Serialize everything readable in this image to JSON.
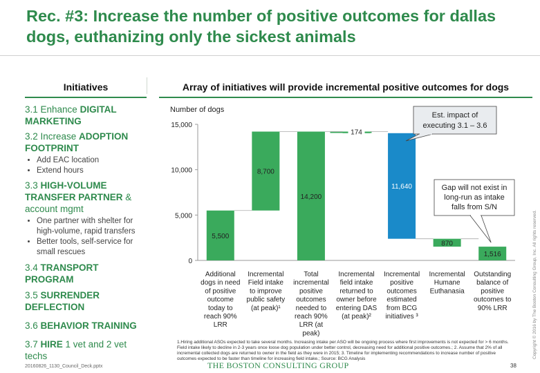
{
  "slide": {
    "title": "Rec. #3: Increase the number of positive outcomes for dallas dogs, euthanizing only the sickest animals",
    "left_heading": "Initiatives",
    "right_heading": "Array of initiatives will provide incremental positive outcomes for dogs",
    "footnote": "1.Hiring additional ASOs expected to take several months.  Increasing intake per ASO  will be ongoing process where first improvements is not expected for > 6 months. Field intake likely to decline in 2-3 years once loose dog population under better control, decreasing need for additional positive outcomes.; 2. Assume that 2% of all incremental collected dogs are returned to owner in the field as they were in 2015; 3. Timeline for implementing recommendations to increase number of positive outcomes expected to be faster than timeline for increasing field intake.; Source: BCG Analysis",
    "file_ref": "20160826_1130_Council_Deck.pptx",
    "logo_text": "THE BOSTON CONSULTING GROUP",
    "page_number": "38",
    "copyright": "Copyright © 2016 by The Boston Consulting Group, Inc. All rights reserved."
  },
  "initiatives": [
    {
      "prefix": "3.1 Enhance ",
      "bold": "DIGITAL MARKETING",
      "suffix": "",
      "bullets": []
    },
    {
      "prefix": "3.2 Increase ",
      "bold": "ADOPTION FOOTPRINT",
      "suffix": "",
      "bullets": [
        "Add EAC location",
        "Extend hours"
      ]
    },
    {
      "prefix": "3.3 ",
      "bold": "HIGH-VOLUME TRANSFER PARTNER",
      "suffix": " & account mgmt",
      "bullets": [
        "One partner  with shelter for high-volume, rapid transfers",
        "Better tools, self-service for small rescues"
      ]
    },
    {
      "prefix": "3.4 ",
      "bold": "TRANSPORT PROGRAM",
      "suffix": "",
      "bullets": []
    },
    {
      "prefix": "3.5 ",
      "bold": "SURRENDER DEFLECTION",
      "suffix": "",
      "bullets": []
    },
    {
      "prefix": "3.6 ",
      "bold": "BEHAVIOR TRAINING",
      "suffix": "",
      "bullets": []
    },
    {
      "prefix": "3.7 ",
      "bold": "HIRE",
      "suffix": " 1 vet and 2 vet techs",
      "bullets": []
    }
  ],
  "colors": {
    "green": "#3aaa5c",
    "light_green": "#6cc28a",
    "blue": "#1a8ac9",
    "title_green": "#2e8a4c",
    "callout_fill": "#e9ecef"
  },
  "chart_data": {
    "type": "bar",
    "subtype": "waterfall",
    "ylabel": "Number of dogs",
    "ylim": [
      0,
      15000
    ],
    "yticks": [
      "0",
      "5,000",
      "10,000",
      "15,000"
    ],
    "ytick_values": [
      0,
      5000,
      10000,
      15000
    ],
    "categories": [
      [
        "Additional",
        "dogs in need",
        "of positive",
        "outcome",
        "today to",
        "reach 90%",
        "LRR"
      ],
      [
        "Incremental",
        "Field intake",
        "to improve",
        "public safety",
        "(at peak)¹"
      ],
      [
        "Total",
        "incremental",
        "positive",
        "outcomes",
        "needed to",
        "reach 90%",
        "LRR (at",
        "peak)"
      ],
      [
        "Incremental",
        "field intake",
        "returned to",
        "owner before",
        "entering DAS",
        "(at peak)²"
      ],
      [
        "Incremental",
        "positive",
        "outcomes",
        "estimated",
        "from BCG",
        "initiatives ³"
      ],
      [
        "Incremental",
        "Humane",
        "Euthanasia"
      ],
      [
        "Outstanding",
        "balance of",
        "positive",
        "outcomes to",
        "90% LRR"
      ]
    ],
    "bars": [
      {
        "value": 5500,
        "label": "5,500",
        "base": 0,
        "top": 5500,
        "color": "green"
      },
      {
        "value": 8700,
        "label": "8,700",
        "base": 5500,
        "top": 14200,
        "color": "green"
      },
      {
        "value": 14200,
        "label": "14,200",
        "base": 0,
        "top": 14200,
        "color": "green"
      },
      {
        "value": 174,
        "label": "174",
        "base": 14026,
        "top": 14200,
        "color": "green"
      },
      {
        "value": 11640,
        "label": "11,640",
        "base": 2386,
        "top": 14026,
        "color": "blue"
      },
      {
        "value": 870,
        "label": "870",
        "base": 1516,
        "top": 2386,
        "color": "green"
      },
      {
        "value": 1516,
        "label": "1,516",
        "base": 0,
        "top": 1516,
        "color": "green"
      }
    ],
    "callouts": [
      {
        "text": [
          "Est. impact of",
          "executing 3.1 – 3.6"
        ]
      },
      {
        "text": [
          "Gap will not exist in",
          "long-run as intake",
          "falls from S/N"
        ]
      }
    ]
  }
}
